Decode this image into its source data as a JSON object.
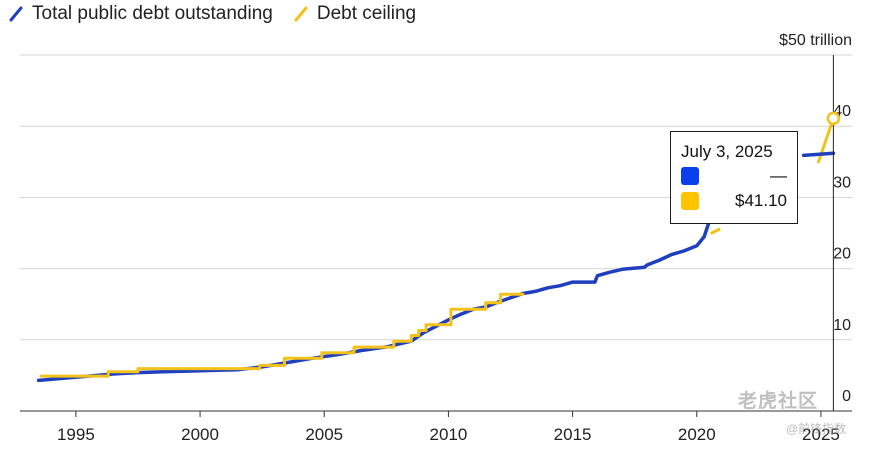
{
  "legend": {
    "items": [
      {
        "label": "Total public debt outstanding",
        "color": "#1f3fbf"
      },
      {
        "label": "Debt ceiling",
        "color": "#f2c21b"
      }
    ]
  },
  "tooltip": {
    "date": "July 3, 2025",
    "rows": [
      {
        "value": "—",
        "color": "#0a3ff0"
      },
      {
        "value": "$41.10",
        "color": "#ffc400"
      }
    ]
  },
  "watermark": {
    "text": "老虎社区",
    "sub": "@前锋指数"
  },
  "chart_data": {
    "type": "line",
    "title": "",
    "xlabel": "",
    "ylabel": "",
    "xlim": [
      1992.75,
      2026.25
    ],
    "ylim": [
      0,
      50
    ],
    "x_ticks": [
      1995,
      2000,
      2005,
      2010,
      2015,
      2020,
      2025
    ],
    "y_ticks": [
      {
        "value": 0,
        "label": "0"
      },
      {
        "value": 10,
        "label": "10"
      },
      {
        "value": 20,
        "label": "20"
      },
      {
        "value": 30,
        "label": "30"
      },
      {
        "value": 40,
        "label": "40"
      },
      {
        "value": 50,
        "label": "$50 trillion"
      }
    ],
    "grid": true,
    "legend_position": "top-left",
    "series": [
      {
        "name": "Total public debt outstanding",
        "color": "#1f3fbf",
        "points": [
          [
            1993.5,
            4.3
          ],
          [
            1994.5,
            4.6
          ],
          [
            1995.5,
            4.9
          ],
          [
            1996.5,
            5.2
          ],
          [
            1997.5,
            5.4
          ],
          [
            1998.5,
            5.5
          ],
          [
            1999.5,
            5.6
          ],
          [
            2000.5,
            5.7
          ],
          [
            2001.5,
            5.8
          ],
          [
            2002.5,
            6.2
          ],
          [
            2003.5,
            6.8
          ],
          [
            2004.5,
            7.4
          ],
          [
            2005.5,
            7.9
          ],
          [
            2006.5,
            8.5
          ],
          [
            2007.5,
            9.0
          ],
          [
            2008.5,
            9.8
          ],
          [
            2009.0,
            11.0
          ],
          [
            2009.5,
            11.9
          ],
          [
            2010.0,
            12.8
          ],
          [
            2010.5,
            13.6
          ],
          [
            2011.0,
            14.3
          ],
          [
            2011.5,
            14.6
          ],
          [
            2012.0,
            15.3
          ],
          [
            2012.5,
            15.9
          ],
          [
            2013.0,
            16.5
          ],
          [
            2013.5,
            16.8
          ],
          [
            2014.0,
            17.3
          ],
          [
            2014.5,
            17.6
          ],
          [
            2015.0,
            18.1
          ],
          [
            2015.9,
            18.1
          ],
          [
            2016.0,
            19.0
          ],
          [
            2016.5,
            19.5
          ],
          [
            2017.0,
            19.9
          ],
          [
            2017.9,
            20.2
          ],
          [
            2018.0,
            20.5
          ],
          [
            2018.5,
            21.2
          ],
          [
            2019.0,
            22.0
          ],
          [
            2019.5,
            22.5
          ],
          [
            2020.0,
            23.2
          ],
          [
            2020.3,
            24.5
          ],
          [
            2020.5,
            26.6
          ]
        ]
      },
      {
        "name": "Debt ceiling",
        "color": "#f2c21b",
        "points": [
          [
            1993.6,
            4.9
          ],
          [
            1996.3,
            4.9
          ],
          [
            1996.3,
            5.5
          ],
          [
            1997.5,
            5.5
          ],
          [
            1997.5,
            5.95
          ],
          [
            2002.4,
            5.95
          ],
          [
            2002.4,
            6.4
          ],
          [
            2003.4,
            6.4
          ],
          [
            2003.4,
            7.4
          ],
          [
            2004.9,
            7.4
          ],
          [
            2004.9,
            8.18
          ],
          [
            2006.2,
            8.18
          ],
          [
            2006.2,
            8.97
          ],
          [
            2007.8,
            8.97
          ],
          [
            2007.8,
            9.8
          ],
          [
            2008.5,
            9.8
          ],
          [
            2008.5,
            10.6
          ],
          [
            2008.8,
            10.6
          ],
          [
            2008.8,
            11.3
          ],
          [
            2009.1,
            11.3
          ],
          [
            2009.1,
            12.1
          ],
          [
            2010.1,
            12.1
          ],
          [
            2010.1,
            14.3
          ],
          [
            2011.5,
            14.3
          ],
          [
            2011.5,
            15.2
          ],
          [
            2012.1,
            15.2
          ],
          [
            2012.1,
            16.4
          ],
          [
            2013.0,
            16.4
          ]
        ]
      },
      {
        "name": "Debt ceiling (recent)",
        "color": "#f2c21b",
        "points": [
          [
            2020.6,
            25.0
          ],
          [
            2020.9,
            25.5
          ]
        ]
      },
      {
        "name": "Debt ceiling (latest)",
        "color": "#f2c21b",
        "points": [
          [
            2024.9,
            35.0
          ],
          [
            2025.5,
            41.1
          ]
        ]
      },
      {
        "name": "Total public debt outstanding (latest)",
        "color": "#1f3fbf",
        "points": [
          [
            2024.3,
            35.9
          ],
          [
            2025.5,
            36.2
          ]
        ]
      }
    ],
    "highlight": {
      "x": 2025.5,
      "value": 41.1
    }
  }
}
